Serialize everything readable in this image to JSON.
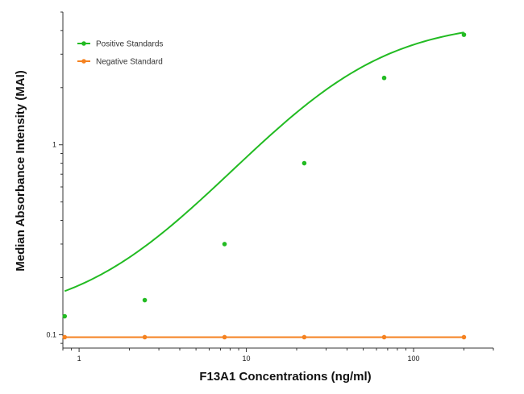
{
  "chart_data": {
    "type": "line",
    "title": "",
    "xlabel": "F13A1 Concentrations (ng/ml)",
    "ylabel": "Median Absorbance Intensity (MAI)",
    "x_scale": "log",
    "y_scale": "log",
    "xlim": [
      0.8,
      300
    ],
    "ylim": [
      0.085,
      5
    ],
    "x_ticks": [
      {
        "value": 1,
        "label": "1"
      },
      {
        "value": 10,
        "label": "10"
      },
      {
        "value": 100,
        "label": "100"
      }
    ],
    "y_ticks": [
      {
        "value": 0.1,
        "label": "0.1"
      },
      {
        "value": 1,
        "label": "1"
      }
    ],
    "grid": false,
    "legend_position": "top-left",
    "series": [
      {
        "name": "Positive Standards",
        "color": "#22bb22",
        "x": [
          0.82,
          2.47,
          7.41,
          22.2,
          66.7,
          200
        ],
        "y": [
          0.125,
          0.152,
          0.3,
          0.8,
          2.25,
          3.8
        ],
        "fit_curve": true
      },
      {
        "name": "Negative Standard",
        "color": "#f58220",
        "x": [
          0.82,
          2.47,
          7.41,
          22.2,
          66.7,
          200
        ],
        "y": [
          0.097,
          0.097,
          0.097,
          0.097,
          0.097,
          0.097
        ],
        "fit_curve": false
      }
    ]
  }
}
